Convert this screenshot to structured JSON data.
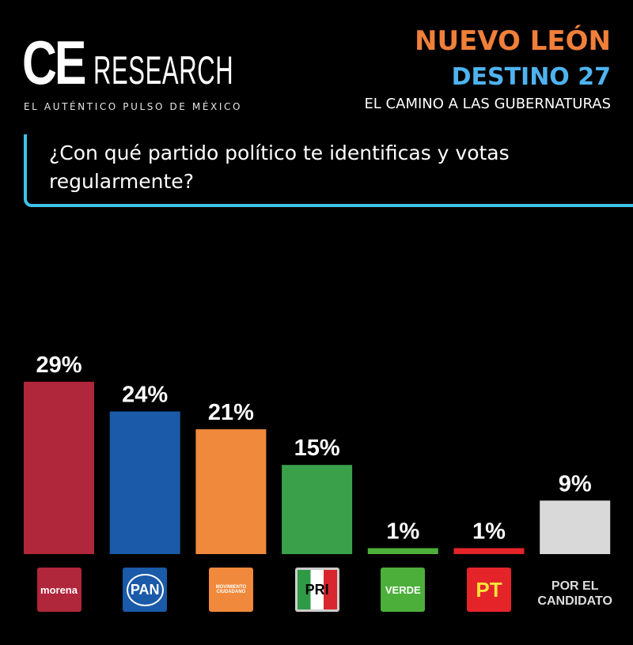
{
  "brand": {
    "logo_ce": "CE",
    "logo_research": "RESEARCH",
    "tagline": "EL AUTÉNTICO PULSO DE MÉXICO"
  },
  "header": {
    "region": "NUEVO LEÓN",
    "series": "DESTINO 27",
    "subtitle": "EL CAMINO A LAS GUBERNATURAS"
  },
  "question": "¿Con qué partido político te identificas y votas regularmente?",
  "colors": {
    "region": "#f07f3a",
    "series": "#4fb3f0",
    "accent_line": "#3fc2e8"
  },
  "chart_data": {
    "type": "bar",
    "title": "¿Con qué partido político te identificas y votas regularmente?",
    "categories": [
      "morena",
      "PAN",
      "MOVIMIENTO CIUDADANO",
      "PRI",
      "VERDE",
      "PT",
      "POR EL CANDIDATO"
    ],
    "values": [
      29,
      24,
      21,
      15,
      1,
      1,
      9
    ],
    "labels": [
      "29%",
      "24%",
      "21%",
      "15%",
      "1%",
      "1%",
      "9%"
    ],
    "colors": [
      "#b0263a",
      "#1a5aa8",
      "#f0893c",
      "#3aa14a",
      "#4caf3a",
      "#e5242a",
      "#d9d9d9"
    ],
    "ylim": [
      0,
      30
    ],
    "grid": false,
    "legend": "none",
    "category_labels": {
      "morena": "morena",
      "pan": "PAN",
      "mc": "MOVIMIENTO CIUDADANO",
      "pri": "PRI",
      "verde": "VERDE",
      "pt": "PT",
      "candidato_line1": "POR EL",
      "candidato_line2": "CANDIDATO"
    }
  }
}
